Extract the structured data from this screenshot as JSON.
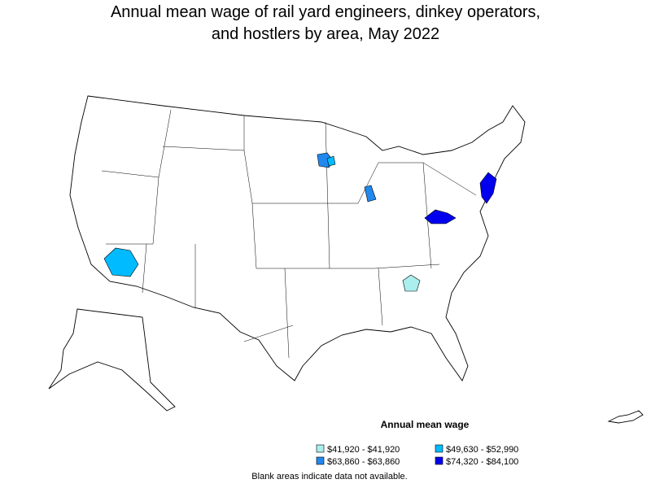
{
  "title": "Annual mean wage of rail yard engineers, dinkey operators, and hostlers by area, May 2022",
  "legend": {
    "title": "Annual mean wage",
    "items": [
      {
        "label": "$41,920 - $41,920",
        "color": "#aaeeee"
      },
      {
        "label": "$49,630 - $52,990",
        "color": "#00bbff"
      },
      {
        "label": "$63,860 - $63,860",
        "color": "#2288ee"
      },
      {
        "label": "$74,320 - $84,100",
        "color": "#0000ee"
      }
    ]
  },
  "note": "Blank areas indicate data not available."
}
